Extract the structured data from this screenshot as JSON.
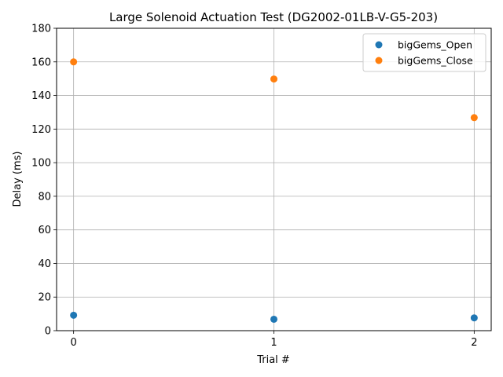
{
  "chart_data": {
    "type": "scatter",
    "title": "Large Solenoid Actuation Test (DG2002-01LB-V-G5-203)",
    "xlabel": "Trial #",
    "ylabel": "Delay (ms)",
    "xlim": [
      -0.085,
      2.085
    ],
    "ylim": [
      0,
      180
    ],
    "xticks": [
      0,
      1,
      2
    ],
    "yticks": [
      0,
      20,
      40,
      60,
      80,
      100,
      120,
      140,
      160,
      180
    ],
    "grid": true,
    "legend_position": "top-right",
    "series": [
      {
        "name": "bigGems_Open",
        "color": "#1f77b4",
        "x": [
          0,
          1,
          2
        ],
        "y": [
          9.2,
          6.8,
          7.6
        ]
      },
      {
        "name": "bigGems_Close",
        "color": "#ff7f0e",
        "x": [
          0,
          1,
          2
        ],
        "y": [
          160,
          149.8,
          126.8
        ]
      }
    ]
  }
}
